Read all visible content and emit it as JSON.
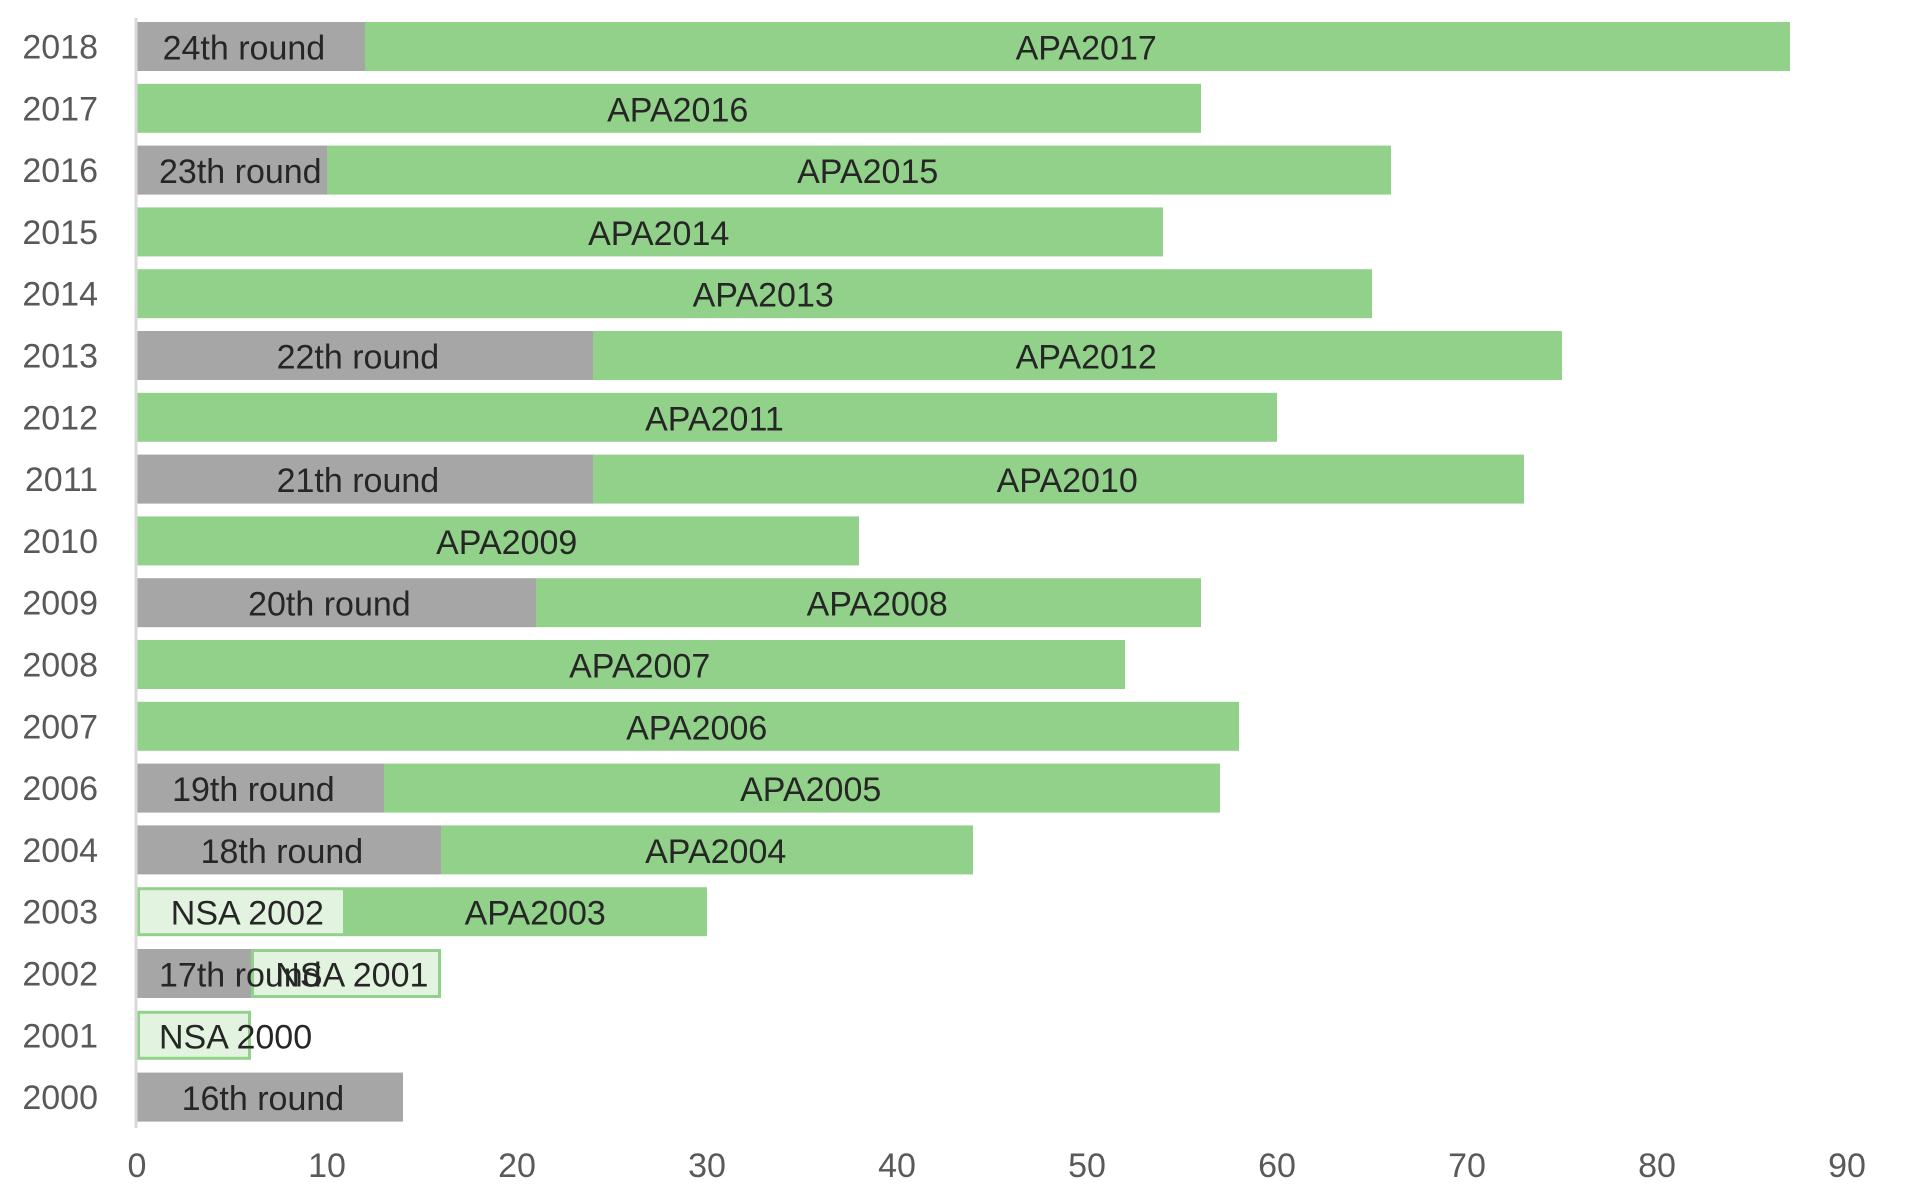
{
  "chart_data": {
    "type": "bar",
    "orientation": "horizontal",
    "stacked": true,
    "title": "",
    "xlabel": "",
    "ylabel": "",
    "xlim": [
      0,
      90
    ],
    "x_ticks": [
      "0",
      "10",
      "20",
      "30",
      "40",
      "50",
      "60",
      "70",
      "80",
      "90"
    ],
    "grid": false,
    "legend": "none",
    "colors": {
      "round": "#a6a6a6",
      "apa": "#92d18a",
      "nsa_fill": "#e2f3df",
      "nsa_border": "#92d18a",
      "axis_text": "#595959",
      "label_text": "#262626"
    },
    "categories": [
      "2018",
      "2017",
      "2016",
      "2015",
      "2014",
      "2013",
      "2012",
      "2011",
      "2010",
      "2009",
      "2008",
      "2007",
      "2006",
      "2004",
      "2003",
      "2002",
      "2001",
      "2000"
    ],
    "rows": [
      {
        "year": "2018",
        "segments": [
          {
            "kind": "round",
            "label": "24th round",
            "value": 12
          },
          {
            "kind": "apa",
            "label": "APA2017",
            "value": 75
          }
        ]
      },
      {
        "year": "2017",
        "segments": [
          {
            "kind": "apa",
            "label": "APA2016",
            "value": 56
          }
        ]
      },
      {
        "year": "2016",
        "segments": [
          {
            "kind": "round",
            "label": "23th round",
            "value": 10
          },
          {
            "kind": "apa",
            "label": "APA2015",
            "value": 56
          }
        ]
      },
      {
        "year": "2015",
        "segments": [
          {
            "kind": "apa",
            "label": "APA2014",
            "value": 54
          }
        ]
      },
      {
        "year": "2014",
        "segments": [
          {
            "kind": "apa",
            "label": "APA2013",
            "value": 65
          }
        ]
      },
      {
        "year": "2013",
        "segments": [
          {
            "kind": "round",
            "label": "22th round",
            "value": 24
          },
          {
            "kind": "apa",
            "label": "APA2012",
            "value": 51
          }
        ]
      },
      {
        "year": "2012",
        "segments": [
          {
            "kind": "apa",
            "label": "APA2011",
            "value": 60
          }
        ]
      },
      {
        "year": "2011",
        "segments": [
          {
            "kind": "round",
            "label": "21th round",
            "value": 24
          },
          {
            "kind": "apa",
            "label": "APA2010",
            "value": 49
          }
        ]
      },
      {
        "year": "2010",
        "segments": [
          {
            "kind": "apa",
            "label": "APA2009",
            "value": 38
          }
        ]
      },
      {
        "year": "2009",
        "segments": [
          {
            "kind": "round",
            "label": "20th round",
            "value": 21
          },
          {
            "kind": "apa",
            "label": "APA2008",
            "value": 35
          }
        ]
      },
      {
        "year": "2008",
        "segments": [
          {
            "kind": "apa",
            "label": "APA2007",
            "value": 52
          }
        ]
      },
      {
        "year": "2007",
        "segments": [
          {
            "kind": "apa",
            "label": "APA2006",
            "value": 58
          }
        ]
      },
      {
        "year": "2006",
        "segments": [
          {
            "kind": "round",
            "label": "19th round",
            "value": 13
          },
          {
            "kind": "apa",
            "label": "APA2005",
            "value": 44
          }
        ]
      },
      {
        "year": "2004",
        "segments": [
          {
            "kind": "round",
            "label": "18th round",
            "value": 16
          },
          {
            "kind": "apa",
            "label": "APA2004",
            "value": 28
          }
        ]
      },
      {
        "year": "2003",
        "segments": [
          {
            "kind": "nsa",
            "label": "NSA 2002",
            "value": 11
          },
          {
            "kind": "apa",
            "label": "APA2003",
            "value": 19
          }
        ]
      },
      {
        "year": "2002",
        "segments": [
          {
            "kind": "round",
            "label": "17th round",
            "value": 6
          },
          {
            "kind": "nsa",
            "label": "NSA 2001",
            "value": 10
          }
        ]
      },
      {
        "year": "2001",
        "segments": [
          {
            "kind": "nsa",
            "label": "NSA 2000",
            "value": 6
          }
        ]
      },
      {
        "year": "2000",
        "segments": [
          {
            "kind": "round",
            "label": "16th round",
            "value": 14
          }
        ]
      }
    ]
  }
}
